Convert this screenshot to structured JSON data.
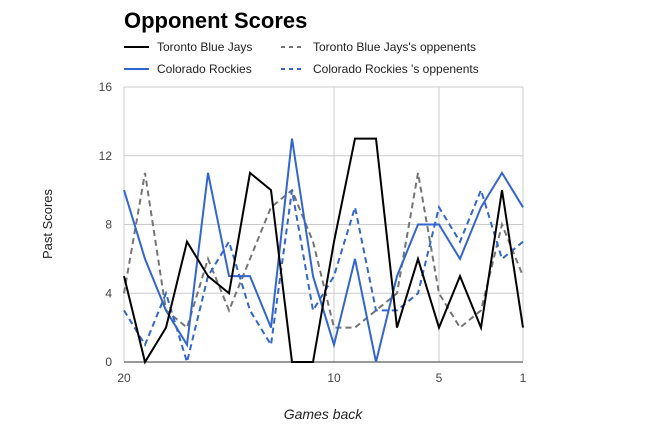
{
  "chart_data": {
    "type": "line",
    "title": "Opponent Scores",
    "xlabel": "Games back",
    "ylabel": "Past Scores",
    "x": [
      20,
      19,
      18,
      17,
      16,
      15,
      14,
      13,
      12,
      11,
      10,
      9,
      8,
      7,
      6,
      5,
      4,
      3,
      2,
      1
    ],
    "x_ticks": [
      20,
      10,
      5,
      1
    ],
    "xlim": [
      20,
      1
    ],
    "ylim": [
      0,
      16
    ],
    "y_ticks": [
      0,
      4,
      8,
      12,
      16
    ],
    "grid": true,
    "legend_position": "top",
    "series": [
      {
        "name": "Toronto Blue Jays",
        "color": "#000000",
        "dash": "solid",
        "values": [
          5,
          0,
          2,
          7,
          5,
          4,
          11,
          10,
          0,
          0,
          7,
          13,
          13,
          2,
          6,
          2,
          5,
          2,
          10,
          2
        ]
      },
      {
        "name": "Toronto Blue Jays's oppenents",
        "color": "#757575",
        "dash": "dashed",
        "values": [
          4,
          11,
          3,
          2,
          6,
          3,
          6,
          9,
          10,
          7,
          2,
          2,
          3,
          4,
          11,
          4,
          2,
          3,
          8,
          5
        ]
      },
      {
        "name": "Colorado Rockies",
        "color": "#3366cc",
        "dash": "solid",
        "values": [
          10,
          6,
          3,
          1,
          11,
          5,
          5,
          2,
          13,
          5,
          1,
          6,
          0,
          5,
          8,
          8,
          6,
          9,
          11,
          9
        ]
      },
      {
        "name": "Colorado Rockies 's oppenents",
        "color": "#3366cc",
        "dash": "dashed",
        "values": [
          3,
          1,
          4,
          0,
          5,
          7,
          3,
          1,
          10,
          3,
          5,
          9,
          3,
          3,
          4,
          9,
          7,
          10,
          6,
          7
        ]
      }
    ]
  }
}
